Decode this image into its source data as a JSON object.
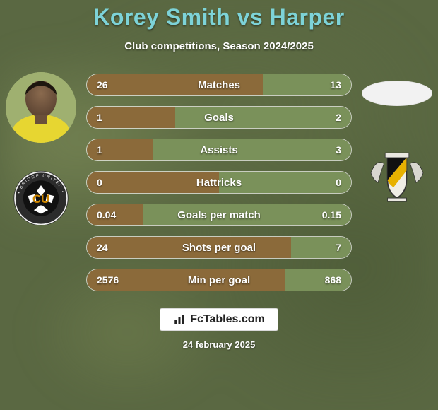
{
  "header": {
    "title": "Korey Smith vs Harper",
    "title_color": "#7dd3d8",
    "title_fontsize": 32,
    "subtitle": "Club competitions, Season 2024/2025",
    "subtitle_color": "#ffffff",
    "subtitle_fontsize": 15
  },
  "background_color": "#5a6842",
  "left_player": {
    "avatar_blurred_background": true,
    "club_name": "Cambridge United",
    "club_badge_colors": {
      "outer": "#2b2b2b",
      "ball": "#111111",
      "panel": "#f5a500",
      "text": "#d08800"
    }
  },
  "right_player": {
    "avatar_blank": true,
    "club_badge_colors": {
      "shield": "#e9e7e0",
      "bend": "#e7b100",
      "outline": "#333333"
    }
  },
  "bars": {
    "border_color": "rgba(255,255,255,0.65)",
    "left_fill_color": "#8b6a3a",
    "right_fill_color": "#7a915a",
    "height": 32,
    "radius": 16,
    "text_color": "#ffffff",
    "label_fontsize": 15,
    "value_fontsize": 14,
    "rows": [
      {
        "label": "Matches",
        "left": "26",
        "right": "13",
        "left_pct": 66.7,
        "right_pct": 33.3
      },
      {
        "label": "Goals",
        "left": "1",
        "right": "2",
        "left_pct": 33.3,
        "right_pct": 66.7
      },
      {
        "label": "Assists",
        "left": "1",
        "right": "3",
        "left_pct": 25.0,
        "right_pct": 75.0
      },
      {
        "label": "Hattricks",
        "left": "0",
        "right": "0",
        "left_pct": 50.0,
        "right_pct": 50.0
      },
      {
        "label": "Goals per match",
        "left": "0.04",
        "right": "0.15",
        "left_pct": 21.1,
        "right_pct": 78.9
      },
      {
        "label": "Shots per goal",
        "left": "24",
        "right": "7",
        "left_pct": 77.4,
        "right_pct": 22.6
      },
      {
        "label": "Min per goal",
        "left": "2576",
        "right": "868",
        "left_pct": 74.8,
        "right_pct": 25.2
      }
    ]
  },
  "footer": {
    "brand_label": "FcTables.com",
    "brand_bg": "#ffffff",
    "brand_border": "#d9d9d9",
    "brand_text_color": "#222222",
    "date": "24 february 2025",
    "date_color": "#ffffff"
  }
}
